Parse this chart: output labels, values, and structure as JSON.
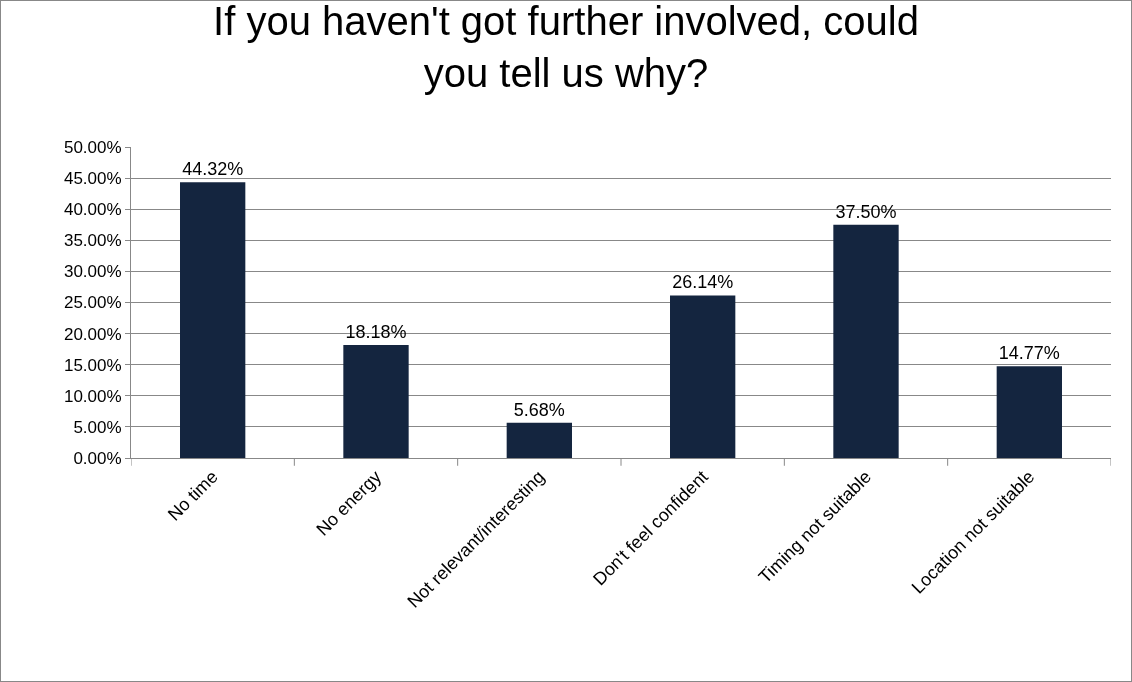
{
  "chart_data": {
    "type": "bar",
    "title": "If you haven't got further involved, could you tell us why?",
    "categories": [
      "No time",
      "No energy",
      "Not relevant/interesting",
      "Don't feel confident",
      "Timing not suitable",
      "Location not suitable"
    ],
    "values": [
      44.32,
      18.18,
      5.68,
      26.14,
      37.5,
      14.77
    ],
    "value_labels": [
      "44.32%",
      "18.18%",
      "5.68%",
      "26.14%",
      "37.50%",
      "14.77%"
    ],
    "color": "#14253f",
    "ylim": [
      0,
      50
    ],
    "yticks": [
      {
        "value": 0,
        "label": "0.00%"
      },
      {
        "value": 5,
        "label": "5.00%"
      },
      {
        "value": 10,
        "label": "10.00%"
      },
      {
        "value": 15,
        "label": "15.00%"
      },
      {
        "value": 20,
        "label": "20.00%"
      },
      {
        "value": 25,
        "label": "25.00%"
      },
      {
        "value": 30,
        "label": "30.00%"
      },
      {
        "value": 35,
        "label": "35.00%"
      },
      {
        "value": 40,
        "label": "40.00%"
      },
      {
        "value": 45,
        "label": "45.00%"
      },
      {
        "value": 50,
        "label": "50.00%"
      }
    ],
    "grid": "y",
    "legend": false
  }
}
